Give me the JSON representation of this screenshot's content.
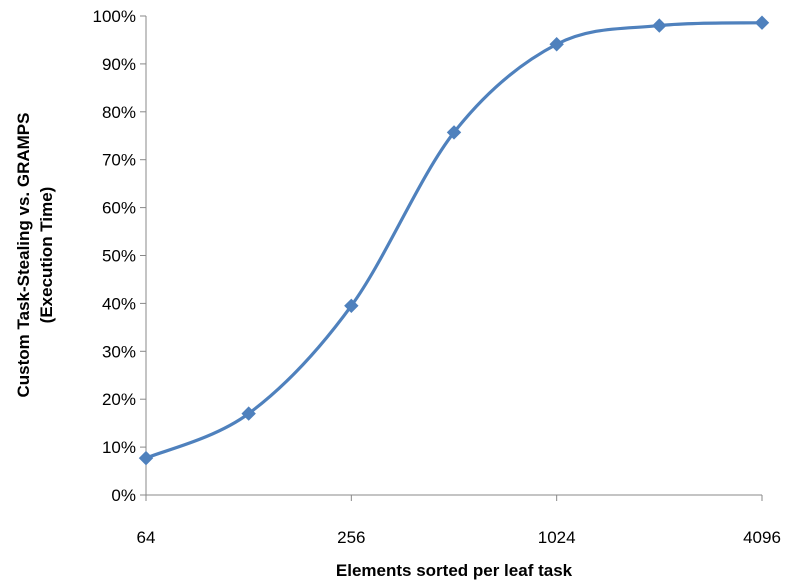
{
  "chart_data": {
    "type": "line",
    "title": "",
    "xlabel": "Elements sorted per leaf task",
    "ylabel_lines": [
      "Custom Task-Stealing vs. GRAMPS",
      "(Execution Time)"
    ],
    "x_scale": "log2",
    "x_ticks": [
      {
        "value": 64,
        "label": "64"
      },
      {
        "value": 256,
        "label": "256"
      },
      {
        "value": 1024,
        "label": "1024"
      },
      {
        "value": 4096,
        "label": "4096"
      }
    ],
    "y_ticks": [
      {
        "value": 0,
        "label": "0%"
      },
      {
        "value": 10,
        "label": "10%"
      },
      {
        "value": 20,
        "label": "20%"
      },
      {
        "value": 30,
        "label": "30%"
      },
      {
        "value": 40,
        "label": "40%"
      },
      {
        "value": 50,
        "label": "50%"
      },
      {
        "value": 60,
        "label": "60%"
      },
      {
        "value": 70,
        "label": "70%"
      },
      {
        "value": 80,
        "label": "80%"
      },
      {
        "value": 90,
        "label": "90%"
      },
      {
        "value": 100,
        "label": "100%"
      }
    ],
    "ylim": [
      0,
      100
    ],
    "xlim": [
      64,
      4096
    ],
    "grid": false,
    "legend": "none",
    "series": [
      {
        "color": "#4F81BD",
        "marker": "diamond",
        "smooth": true,
        "points": [
          {
            "x": 64,
            "y": 7.7
          },
          {
            "x": 128,
            "y": 17.0
          },
          {
            "x": 256,
            "y": 39.5
          },
          {
            "x": 512,
            "y": 75.7
          },
          {
            "x": 1024,
            "y": 94.1
          },
          {
            "x": 2048,
            "y": 98.0
          },
          {
            "x": 4096,
            "y": 98.6
          }
        ]
      }
    ]
  }
}
